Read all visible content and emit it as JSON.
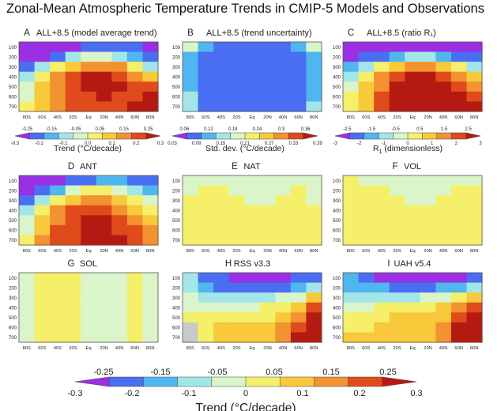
{
  "title": "Zonal-Mean Atmospheric Temperature Trends in CMIP-5 Models and Observations",
  "palette": [
    "#9a2fe3",
    "#4a6ef2",
    "#4fb6f0",
    "#a3e6e8",
    "#d9f5c9",
    "#f6ef69",
    "#f8c93a",
    "#f29230",
    "#e04b1b",
    "#b51a12"
  ],
  "chart_data": [
    {
      "type": "heatmap",
      "letter": "A",
      "label": "ALL+8.5 (model average trend)",
      "field": "trend",
      "x_ticks": [
        "80S",
        "60S",
        "40S",
        "20S",
        "Eq",
        "20N",
        "40N",
        "60N",
        "80N"
      ],
      "y_ticks": [
        "100",
        "200",
        "300",
        "400",
        "500",
        "600",
        "700"
      ],
      "rows": [
        [
          -0.31,
          -0.3,
          -0.29,
          -0.25,
          -0.22,
          -0.2,
          -0.21,
          -0.23,
          -0.27
        ],
        [
          -0.3,
          -0.27,
          -0.19,
          -0.12,
          -0.05,
          -0.04,
          -0.08,
          -0.15,
          -0.24
        ],
        [
          -0.22,
          -0.12,
          0.0,
          0.1,
          0.15,
          0.15,
          0.12,
          0.02,
          -0.08
        ],
        [
          -0.12,
          0.02,
          0.13,
          0.21,
          0.26,
          0.26,
          0.22,
          0.16,
          0.1
        ],
        [
          -0.06,
          0.09,
          0.17,
          0.23,
          0.27,
          0.27,
          0.24,
          0.22,
          0.2
        ],
        [
          -0.02,
          0.1,
          0.17,
          0.21,
          0.23,
          0.24,
          0.23,
          0.23,
          0.24
        ],
        [
          0.0,
          0.11,
          0.16,
          0.19,
          0.2,
          0.21,
          0.22,
          0.24,
          0.27
        ]
      ]
    },
    {
      "type": "heatmap",
      "letter": "B",
      "label": "ALL+8.5 (trend uncertainty)",
      "field": "std",
      "x_ticks": [
        "80S",
        "60S",
        "40S",
        "20S",
        "Eq",
        "20N",
        "40N",
        "60N",
        "80N"
      ],
      "y_ticks": [
        "100",
        "200",
        "300",
        "400",
        "500",
        "600",
        "700"
      ],
      "rows": [
        [
          0.18,
          0.12,
          0.09,
          0.09,
          0.09,
          0.09,
          0.09,
          0.12,
          0.18
        ],
        [
          0.12,
          0.09,
          0.08,
          0.08,
          0.08,
          0.08,
          0.08,
          0.09,
          0.12
        ],
        [
          0.11,
          0.08,
          0.08,
          0.08,
          0.08,
          0.08,
          0.08,
          0.08,
          0.11
        ],
        [
          0.11,
          0.08,
          0.07,
          0.07,
          0.07,
          0.07,
          0.07,
          0.08,
          0.11
        ],
        [
          0.12,
          0.08,
          0.07,
          0.07,
          0.07,
          0.07,
          0.07,
          0.08,
          0.12
        ],
        [
          0.14,
          0.09,
          0.08,
          0.07,
          0.07,
          0.07,
          0.08,
          0.09,
          0.13
        ],
        [
          0.16,
          0.1,
          0.08,
          0.08,
          0.07,
          0.08,
          0.08,
          0.1,
          0.15
        ]
      ]
    },
    {
      "type": "heatmap",
      "letter": "C",
      "label": "ALL+8.5 (ratio R₁)",
      "field": "ratio",
      "x_ticks": [
        "80S",
        "60S",
        "40S",
        "20S",
        "Eq",
        "20N",
        "40N",
        "60N",
        "80N"
      ],
      "y_ticks": [
        "100",
        "200",
        "300",
        "400",
        "500",
        "600",
        "700"
      ],
      "rows": [
        [
          -2.7,
          -2.8,
          -2.8,
          -2.8,
          -2.6,
          -2.5,
          -2.6,
          -2.7,
          -2.6
        ],
        [
          -2.5,
          -2.4,
          -1.9,
          -1.5,
          -1.2,
          -1.2,
          -1.5,
          -2.0,
          -2.3
        ],
        [
          -1.7,
          -1.1,
          0.0,
          0.9,
          1.3,
          1.3,
          1.1,
          0.3,
          -0.6
        ],
        [
          -0.8,
          0.4,
          1.4,
          2.2,
          2.6,
          2.6,
          2.3,
          1.6,
          0.8
        ],
        [
          -0.3,
          0.8,
          1.8,
          2.5,
          2.9,
          2.9,
          2.6,
          2.2,
          1.7
        ],
        [
          0.0,
          1.0,
          1.9,
          2.5,
          2.8,
          2.9,
          2.7,
          2.6,
          2.3
        ],
        [
          0.2,
          1.1,
          1.9,
          2.4,
          2.7,
          2.8,
          2.8,
          2.9,
          2.9
        ]
      ]
    },
    {
      "type": "heatmap",
      "letter": "D",
      "label": "ANT",
      "field": "trend",
      "x_ticks": [
        "80S",
        "60S",
        "40S",
        "20S",
        "Eq",
        "20N",
        "40N",
        "60N",
        "80N"
      ],
      "y_ticks": [
        "100",
        "200",
        "300",
        "400",
        "500",
        "600",
        "700"
      ],
      "rows": [
        [
          -0.34,
          -0.32,
          -0.27,
          -0.22,
          -0.19,
          -0.17,
          -0.18,
          -0.2,
          -0.24
        ],
        [
          -0.3,
          -0.24,
          -0.14,
          -0.06,
          0.0,
          0.0,
          -0.02,
          -0.08,
          -0.16
        ],
        [
          -0.2,
          -0.08,
          0.03,
          0.1,
          0.14,
          0.14,
          0.1,
          0.03,
          -0.05
        ],
        [
          -0.1,
          0.03,
          0.12,
          0.18,
          0.21,
          0.21,
          0.17,
          0.11,
          0.05
        ],
        [
          -0.04,
          0.08,
          0.16,
          0.21,
          0.24,
          0.24,
          0.21,
          0.16,
          0.11
        ],
        [
          -0.02,
          0.11,
          0.18,
          0.22,
          0.24,
          0.25,
          0.23,
          0.2,
          0.14
        ],
        [
          0.0,
          0.12,
          0.19,
          0.22,
          0.24,
          0.25,
          0.25,
          0.21,
          0.17
        ]
      ]
    },
    {
      "type": "heatmap",
      "letter": "E",
      "label": "NAT",
      "field": "trend",
      "x_ticks": [
        "80S",
        "60S",
        "40S",
        "20S",
        "Eq",
        "20N",
        "40N",
        "60N",
        "80N"
      ],
      "y_ticks": [
        "100",
        "200",
        "300",
        "400",
        "500",
        "600",
        "700"
      ],
      "rows": [
        [
          -0.04,
          -0.03,
          -0.03,
          -0.03,
          -0.03,
          -0.03,
          -0.03,
          -0.03,
          -0.04
        ],
        [
          -0.02,
          0.02,
          0.01,
          -0.02,
          -0.03,
          -0.03,
          -0.02,
          0.01,
          -0.03
        ],
        [
          0.0,
          0.03,
          0.03,
          0.01,
          -0.01,
          -0.01,
          0.01,
          0.03,
          -0.01
        ],
        [
          0.01,
          0.03,
          0.03,
          0.02,
          0.01,
          0.01,
          0.02,
          0.03,
          0.01
        ],
        [
          0.02,
          0.03,
          0.03,
          0.02,
          0.02,
          0.02,
          0.02,
          0.03,
          0.02
        ],
        [
          0.02,
          0.03,
          0.03,
          0.02,
          0.02,
          0.02,
          0.02,
          0.03,
          0.02
        ],
        [
          0.02,
          0.03,
          0.03,
          0.02,
          0.02,
          0.02,
          0.02,
          0.03,
          0.02
        ]
      ]
    },
    {
      "type": "heatmap",
      "letter": "F",
      "label": "VOL",
      "field": "trend",
      "x_ticks": [
        "80S",
        "60S",
        "40S",
        "20S",
        "Eq",
        "20N",
        "40N",
        "60N",
        "80N"
      ],
      "y_ticks": [
        "100",
        "200",
        "300",
        "400",
        "500",
        "600",
        "700"
      ],
      "rows": [
        [
          0.0,
          -0.02,
          -0.03,
          -0.03,
          -0.02,
          -0.02,
          -0.03,
          -0.03,
          -0.02
        ],
        [
          0.02,
          0.02,
          0.0,
          -0.02,
          -0.02,
          -0.02,
          -0.01,
          0.01,
          0.0
        ],
        [
          0.02,
          0.03,
          0.02,
          0.0,
          -0.01,
          -0.01,
          0.01,
          0.02,
          0.01
        ],
        [
          0.02,
          0.03,
          0.03,
          0.02,
          0.01,
          0.01,
          0.02,
          0.03,
          0.02
        ],
        [
          0.02,
          0.03,
          0.03,
          0.02,
          0.02,
          0.02,
          0.02,
          0.03,
          0.02
        ],
        [
          0.02,
          0.03,
          0.03,
          0.02,
          0.02,
          0.02,
          0.02,
          0.03,
          0.02
        ],
        [
          0.02,
          0.03,
          0.03,
          0.02,
          0.02,
          0.02,
          0.02,
          0.03,
          0.02
        ]
      ]
    },
    {
      "type": "heatmap",
      "letter": "G",
      "label": "SOL",
      "field": "trend",
      "x_ticks": [
        "80S",
        "60S",
        "40S",
        "20S",
        "Eq",
        "20N",
        "40N",
        "60N",
        "80N"
      ],
      "y_ticks": [
        "100",
        "200",
        "300",
        "400",
        "500",
        "600",
        "700"
      ],
      "rows": [
        [
          -0.02,
          0.01,
          0.02,
          0.0,
          -0.03,
          -0.03,
          -0.02,
          0.02,
          -0.02
        ],
        [
          -0.02,
          0.02,
          0.02,
          0.01,
          -0.02,
          -0.02,
          -0.01,
          0.02,
          -0.02
        ],
        [
          -0.02,
          0.02,
          0.02,
          0.01,
          -0.02,
          -0.01,
          -0.01,
          0.02,
          -0.02
        ],
        [
          -0.03,
          0.02,
          0.02,
          0.01,
          -0.01,
          -0.01,
          -0.02,
          0.02,
          -0.02
        ],
        [
          -0.03,
          0.02,
          0.02,
          0.01,
          -0.02,
          -0.02,
          -0.02,
          0.02,
          -0.03
        ],
        [
          -0.02,
          0.02,
          0.02,
          0.01,
          -0.02,
          -0.02,
          -0.02,
          0.02,
          -0.02
        ],
        [
          -0.02,
          0.02,
          0.02,
          0.01,
          -0.02,
          -0.02,
          -0.02,
          0.02,
          -0.02
        ]
      ]
    },
    {
      "type": "heatmap",
      "letter": "H",
      "label": "RSS v3.3",
      "field": "trend",
      "x_ticks": [
        "80S",
        "60S",
        "40S",
        "20S",
        "Eq",
        "20N",
        "40N",
        "60N",
        "80N"
      ],
      "y_ticks": [
        "100",
        "200",
        "300",
        "400",
        "500",
        "600",
        "700"
      ],
      "missing_cells": [
        [
          5,
          0
        ],
        [
          6,
          0
        ]
      ],
      "rows": [
        [
          -0.08,
          -0.2,
          -0.24,
          -0.26,
          -0.26,
          -0.26,
          -0.26,
          -0.24,
          -0.2
        ],
        [
          -0.1,
          -0.16,
          -0.2,
          -0.22,
          -0.22,
          -0.22,
          -0.2,
          -0.16,
          -0.1
        ],
        [
          -0.06,
          -0.1,
          -0.12,
          -0.12,
          -0.12,
          -0.1,
          -0.06,
          -0.02,
          0.06
        ],
        [
          -0.02,
          -0.04,
          -0.03,
          -0.02,
          -0.02,
          0.0,
          0.03,
          0.08,
          0.18
        ],
        [
          0.0,
          0.0,
          0.03,
          0.04,
          0.04,
          0.05,
          0.08,
          0.15,
          0.26
        ],
        [
          null,
          0.03,
          0.06,
          0.07,
          0.07,
          0.09,
          0.12,
          0.2,
          0.32
        ],
        [
          null,
          0.04,
          0.08,
          0.08,
          0.09,
          0.11,
          0.15,
          0.24,
          0.34
        ]
      ]
    },
    {
      "type": "heatmap",
      "letter": "I",
      "label": "UAH v5.4",
      "field": "trend",
      "x_ticks": [
        "80S",
        "60S",
        "40S",
        "20S",
        "Eq",
        "20N",
        "40N",
        "60N",
        "80N"
      ],
      "y_ticks": [
        "100",
        "200",
        "300",
        "400",
        "500",
        "600",
        "700"
      ],
      "rows": [
        [
          -0.18,
          -0.22,
          -0.26,
          -0.28,
          -0.28,
          -0.28,
          -0.28,
          -0.26,
          -0.22
        ],
        [
          -0.14,
          -0.16,
          -0.18,
          -0.2,
          -0.2,
          -0.2,
          -0.18,
          -0.14,
          -0.08
        ],
        [
          -0.1,
          -0.08,
          -0.08,
          -0.08,
          -0.08,
          -0.06,
          -0.02,
          0.04,
          0.1
        ],
        [
          -0.04,
          -0.02,
          0.0,
          0.02,
          0.02,
          0.03,
          0.06,
          0.14,
          0.2
        ],
        [
          0.02,
          0.03,
          0.05,
          0.06,
          0.06,
          0.07,
          0.1,
          0.2,
          0.28
        ],
        [
          0.05,
          0.05,
          0.08,
          0.08,
          0.08,
          0.09,
          0.12,
          0.24,
          0.32
        ],
        [
          0.08,
          0.08,
          0.1,
          0.1,
          0.1,
          0.11,
          0.14,
          0.26,
          0.36
        ]
      ]
    }
  ],
  "colorbars": [
    {
      "id": "trend",
      "label": "Trend (°C/decade)",
      "bounds": [
        -0.3,
        -0.25,
        -0.2,
        -0.15,
        -0.1,
        -0.05,
        0,
        0.05,
        0.1,
        0.15,
        0.2,
        0.25,
        0.3
      ],
      "upper_ticks": [
        "-0.25",
        "-0.15",
        "-0.05",
        "0.05",
        "0.15",
        "0.25"
      ],
      "lower_ticks": [
        "-0.3",
        "-0.2",
        "-0.1",
        "0.0",
        "0.1",
        "0.2",
        "0.3"
      ]
    },
    {
      "id": "std",
      "label": "Std. dev. (°C/decade)",
      "bounds": [
        0.03,
        0.06,
        0.09,
        0.12,
        0.15,
        0.18,
        0.21,
        0.24,
        0.27,
        0.3,
        0.33,
        0.36,
        0.39
      ],
      "upper_ticks": [
        "0.06",
        "0.12",
        "0.18",
        "0.24",
        "0.3",
        "0.36"
      ],
      "lower_ticks": [
        "0.03",
        "0.09",
        "0.15",
        "0.21",
        "0.27",
        "0.33",
        "0.39"
      ]
    },
    {
      "id": "ratio",
      "label": "R",
      "label_sub": "1",
      "label_tail": " (dimensionless)",
      "bounds": [
        -3,
        -2.5,
        -2,
        -1.5,
        -1,
        -0.5,
        0,
        0.5,
        1,
        1.5,
        2,
        2.5,
        3
      ],
      "upper_ticks": [
        "-2.5",
        "-1.5",
        "-0.5",
        "0.5",
        "1.5",
        "2.5"
      ],
      "lower_ticks": [
        "-3",
        "-2",
        "-1",
        "0",
        "1",
        "2",
        "3"
      ]
    },
    {
      "id": "bottom",
      "label": "Trend (°C/decade)",
      "bounds": [
        -0.3,
        -0.25,
        -0.2,
        -0.15,
        -0.1,
        -0.05,
        0,
        0.05,
        0.1,
        0.15,
        0.2,
        0.25,
        0.3
      ],
      "upper_ticks": [
        "-0.25",
        "-0.15",
        "-0.05",
        "0.05",
        "0.15",
        "0.25"
      ],
      "lower_ticks": [
        "-0.3",
        "-0.2",
        "-0.1",
        "0",
        "0.1",
        "0.2",
        "0.3"
      ]
    }
  ]
}
